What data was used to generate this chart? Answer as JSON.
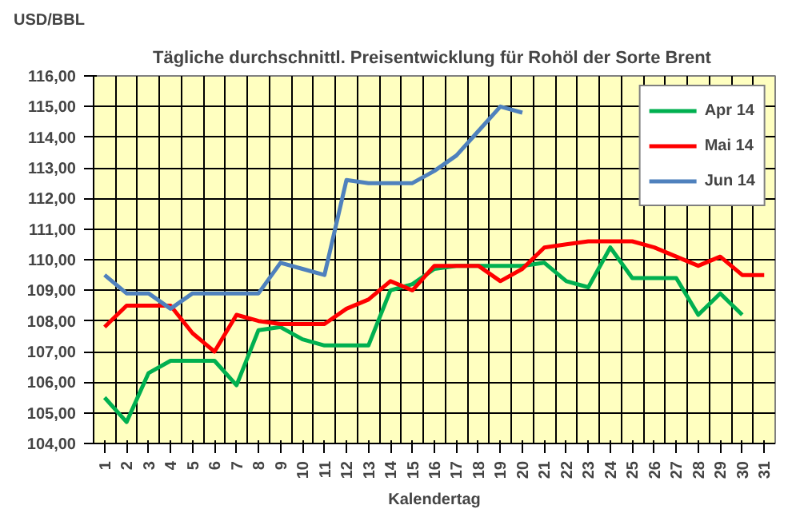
{
  "chart_data": {
    "type": "line",
    "title": "Tägliche durchschnittl. Preisentwicklung für  Rohöl der Sorte Brent",
    "ylabel": "USD/BBL",
    "xlabel": "Kalendertag",
    "categories": [
      "1",
      "2",
      "3",
      "4",
      "5",
      "6",
      "7",
      "8",
      "9",
      "10",
      "11",
      "12",
      "13",
      "14",
      "15",
      "16",
      "17",
      "18",
      "19",
      "20",
      "21",
      "22",
      "23",
      "24",
      "25",
      "26",
      "27",
      "28",
      "29",
      "30",
      "31"
    ],
    "series": [
      {
        "name": "Apr 14",
        "color": "#00b050",
        "values": [
          105.5,
          104.7,
          106.3,
          106.7,
          106.7,
          106.7,
          105.9,
          107.7,
          107.8,
          107.4,
          107.2,
          107.2,
          107.2,
          109.0,
          109.2,
          109.7,
          109.8,
          109.8,
          109.8,
          109.8,
          109.9,
          109.3,
          109.1,
          110.4,
          109.4,
          109.4,
          109.4,
          108.2,
          108.9,
          108.2,
          null
        ]
      },
      {
        "name": "Mai 14",
        "color": "#ff0000",
        "values": [
          107.8,
          108.5,
          108.5,
          108.5,
          107.6,
          107.0,
          108.2,
          108.0,
          107.9,
          107.9,
          107.9,
          108.4,
          108.7,
          109.3,
          109.0,
          109.8,
          109.8,
          109.8,
          109.3,
          109.7,
          110.4,
          110.5,
          110.6,
          110.6,
          110.6,
          110.4,
          110.1,
          109.8,
          110.1,
          109.5,
          109.5
        ]
      },
      {
        "name": "Jun 14",
        "color": "#4f81bd",
        "values": [
          109.5,
          108.9,
          108.9,
          108.4,
          108.9,
          108.9,
          108.9,
          108.9,
          109.9,
          109.7,
          109.5,
          112.6,
          112.5,
          112.5,
          112.5,
          112.9,
          113.4,
          114.2,
          115.0,
          114.8,
          null,
          null,
          null,
          null,
          null,
          null,
          null,
          null,
          null,
          null,
          null
        ]
      }
    ],
    "ylim": [
      104,
      116
    ],
    "yticks": [
      {
        "value": 104,
        "label": "104,00"
      },
      {
        "value": 105,
        "label": "105,00"
      },
      {
        "value": 106,
        "label": "106,00"
      },
      {
        "value": 107,
        "label": "107,00"
      },
      {
        "value": 108,
        "label": "108,00"
      },
      {
        "value": 109,
        "label": "109,00"
      },
      {
        "value": 110,
        "label": "110,00"
      },
      {
        "value": 111,
        "label": "111,00"
      },
      {
        "value": 112,
        "label": "112,00"
      },
      {
        "value": 113,
        "label": "113,00"
      },
      {
        "value": 114,
        "label": "114,00"
      },
      {
        "value": 115,
        "label": "115,00"
      },
      {
        "value": 116,
        "label": "116,00"
      }
    ],
    "grid": true,
    "legend": "top right",
    "marker": "none",
    "line_style": "solid"
  }
}
